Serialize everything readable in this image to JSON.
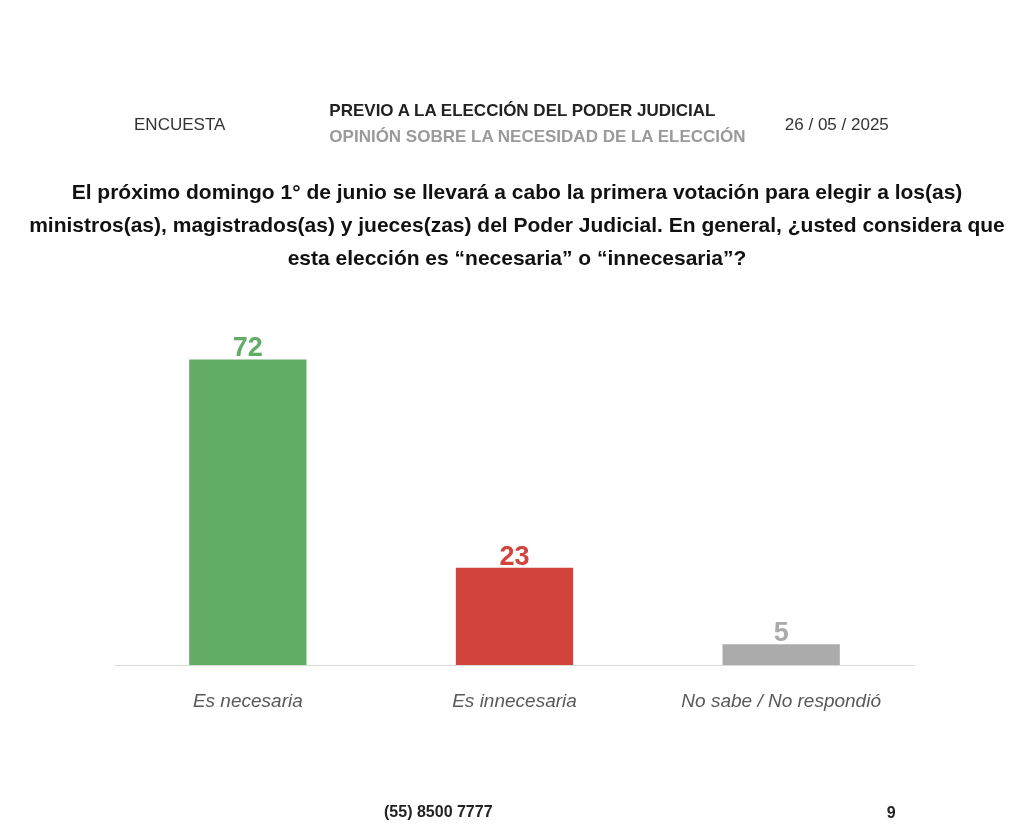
{
  "chart_data": {
    "type": "bar",
    "title": "PREVIO A LA ELECCIÓN DEL PODER JUDICIAL",
    "subtitle": "OPINIÓN SOBRE LA NECESIDAD DE LA ELECCIÓN",
    "annotations": [
      "ENCUESTA",
      "26 / 05 / 2025",
      "El próximo domingo 1° de junio se llevará a cabo la primera votación para elegir a los(as) ministros(as), magistrados(as) y jueces(zas) del Poder Judicial. En general, ¿usted considera que esta elección es “necesaria” o “innecesaria”?",
      "(55) 8500 7777",
      "9"
    ],
    "categories": [
      "Es necesaria",
      "Es innecesaria",
      "No sabe / No respondió"
    ],
    "values": [
      72,
      23,
      5
    ],
    "colors": [
      "#62ac66",
      "#d2443b",
      "#ababab"
    ],
    "data_labels": true
  }
}
